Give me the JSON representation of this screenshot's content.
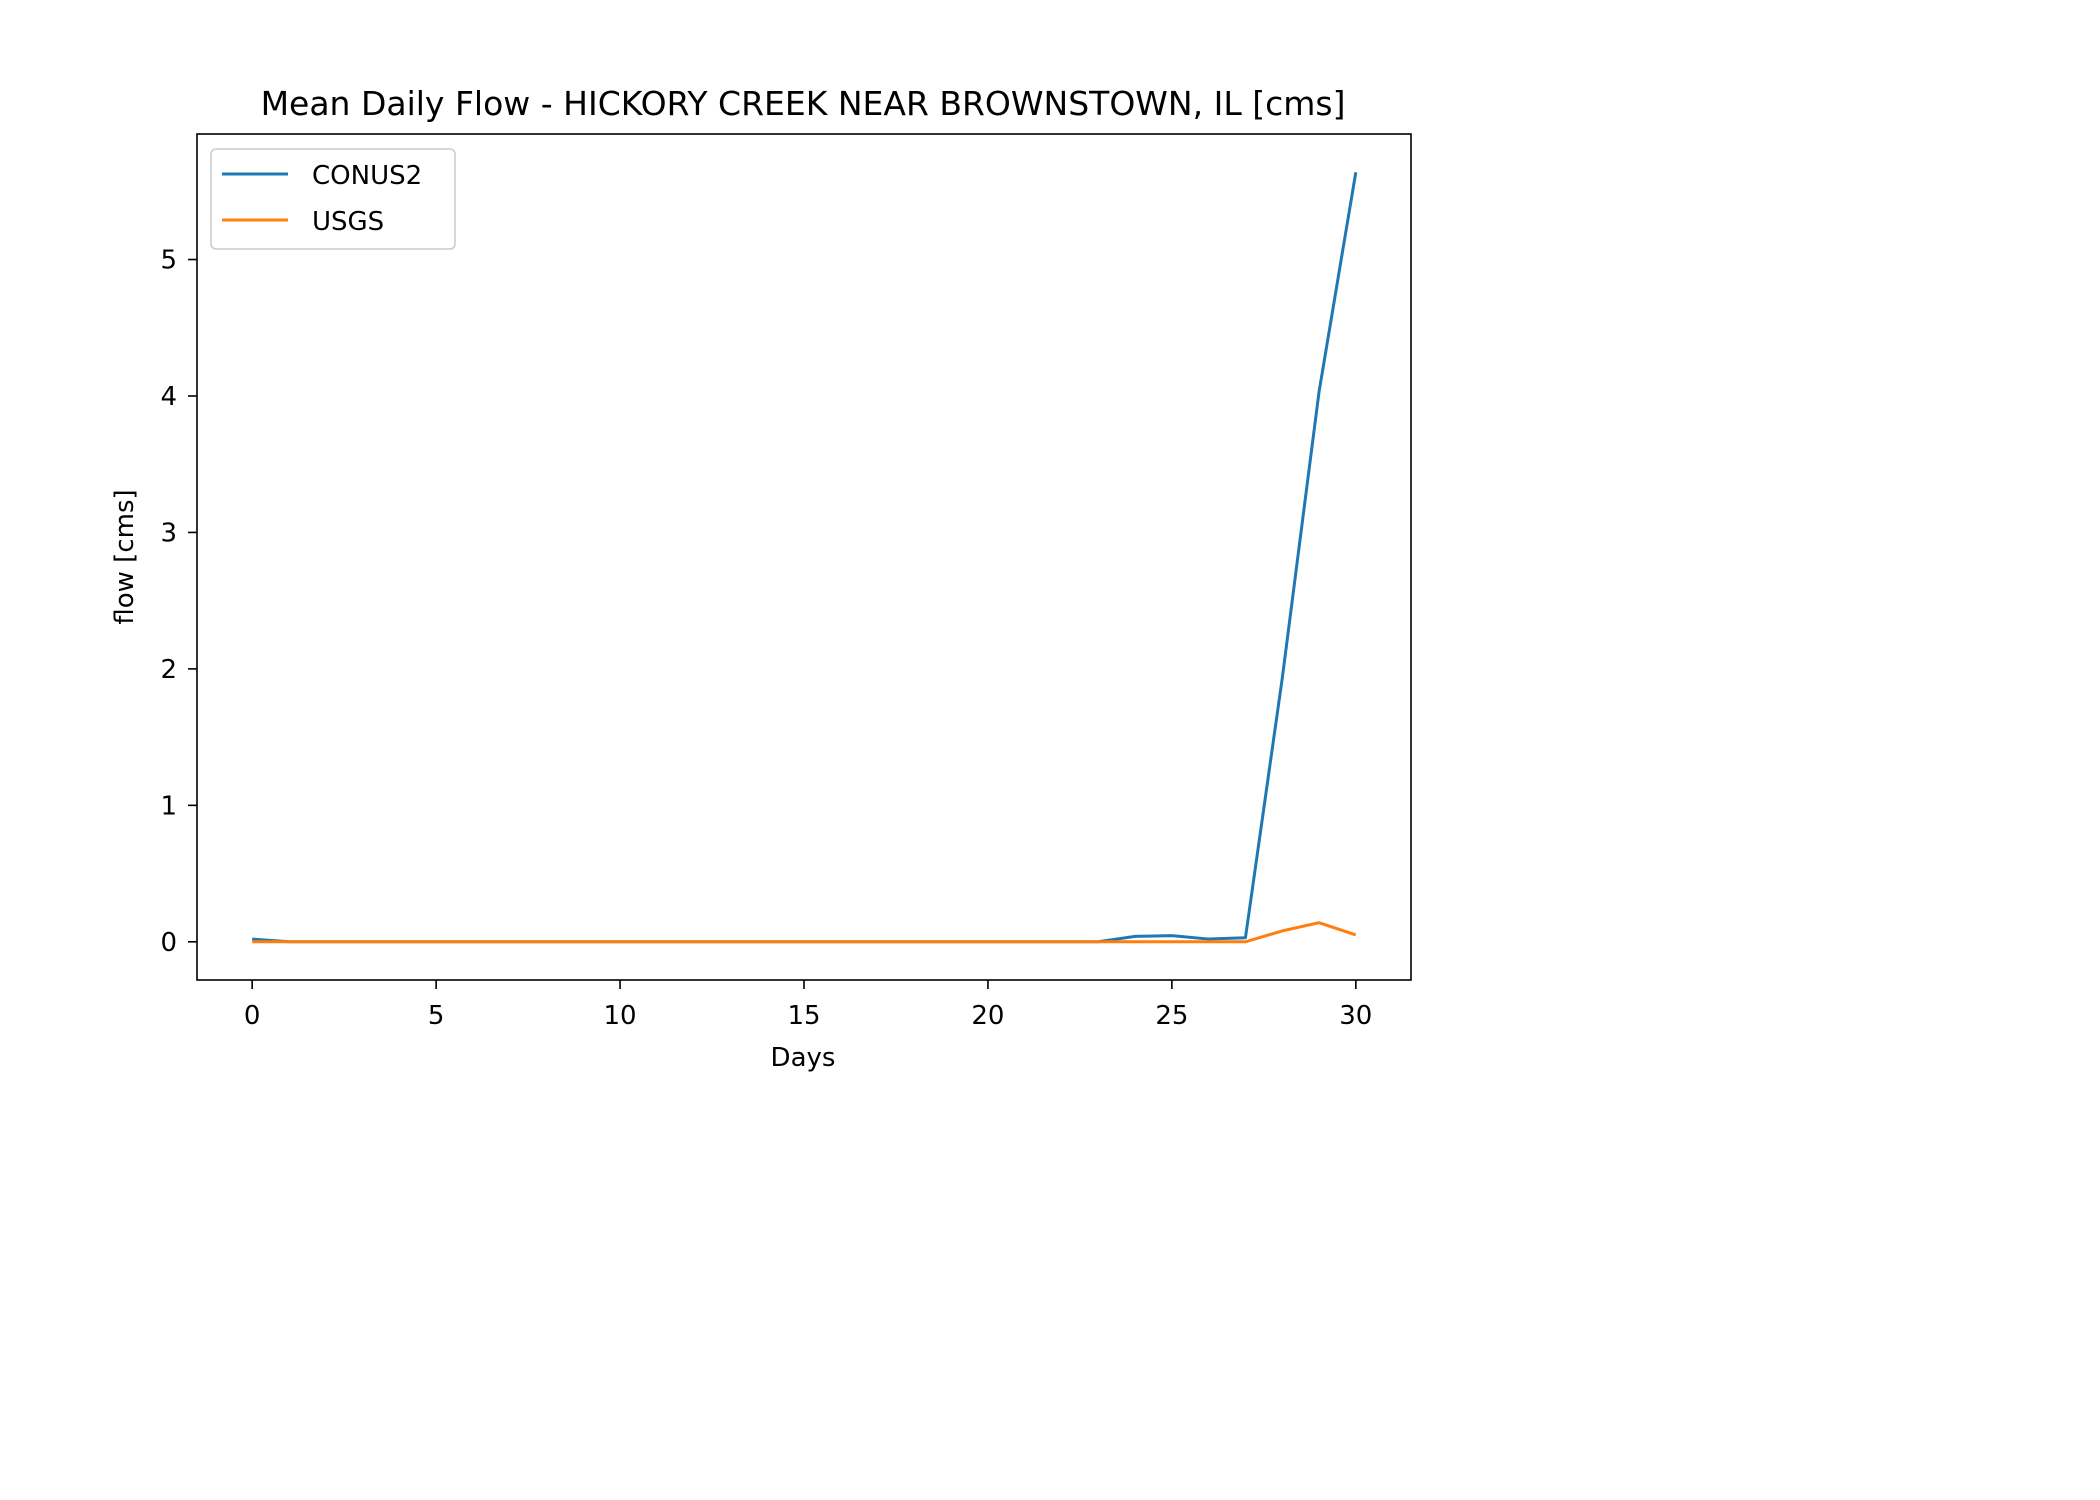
{
  "chart_data": {
    "type": "line",
    "title": "Mean Daily Flow - HICKORY CREEK NEAR BROWNSTOWN, IL [cms]",
    "xlabel": "Days",
    "ylabel": "flow [cms]",
    "xlim": [
      -1.5,
      31.5
    ],
    "ylim": [
      -0.28,
      5.92
    ],
    "x_ticks": [
      0,
      5,
      10,
      15,
      20,
      25,
      30
    ],
    "x_tick_labels": [
      "0",
      "5",
      "10",
      "15",
      "20",
      "25",
      "30"
    ],
    "y_ticks": [
      0,
      1,
      2,
      3,
      4,
      5
    ],
    "y_tick_labels": [
      "0",
      "1",
      "2",
      "3",
      "4",
      "5"
    ],
    "grid": false,
    "legend_position": "upper-left",
    "x": [
      0,
      1,
      2,
      3,
      4,
      5,
      6,
      7,
      8,
      9,
      10,
      11,
      12,
      13,
      14,
      15,
      16,
      17,
      18,
      19,
      20,
      21,
      22,
      23,
      24,
      25,
      26,
      27,
      28,
      29,
      30
    ],
    "series": [
      {
        "name": "CONUS2",
        "color": "#1f77b4",
        "values": [
          0.02,
          0.0,
          0.0,
          0.0,
          0.0,
          0.0,
          0.0,
          0.0,
          0.0,
          0.0,
          0.0,
          0.0,
          0.0,
          0.0,
          0.0,
          0.0,
          0.0,
          0.0,
          0.0,
          0.0,
          0.0,
          0.0,
          0.0,
          0.0,
          0.04,
          0.045,
          0.02,
          0.03,
          1.93,
          4.03,
          5.64
        ]
      },
      {
        "name": "USGS",
        "color": "#ff7f0e",
        "values": [
          0.0,
          0.0,
          0.0,
          0.0,
          0.0,
          0.0,
          0.0,
          0.0,
          0.0,
          0.0,
          0.0,
          0.0,
          0.0,
          0.0,
          0.0,
          0.0,
          0.0,
          0.0,
          0.0,
          0.0,
          0.0,
          0.0,
          0.0,
          0.0,
          0.0,
          0.0,
          0.0,
          0.0,
          0.08,
          0.14,
          0.05
        ]
      }
    ]
  }
}
